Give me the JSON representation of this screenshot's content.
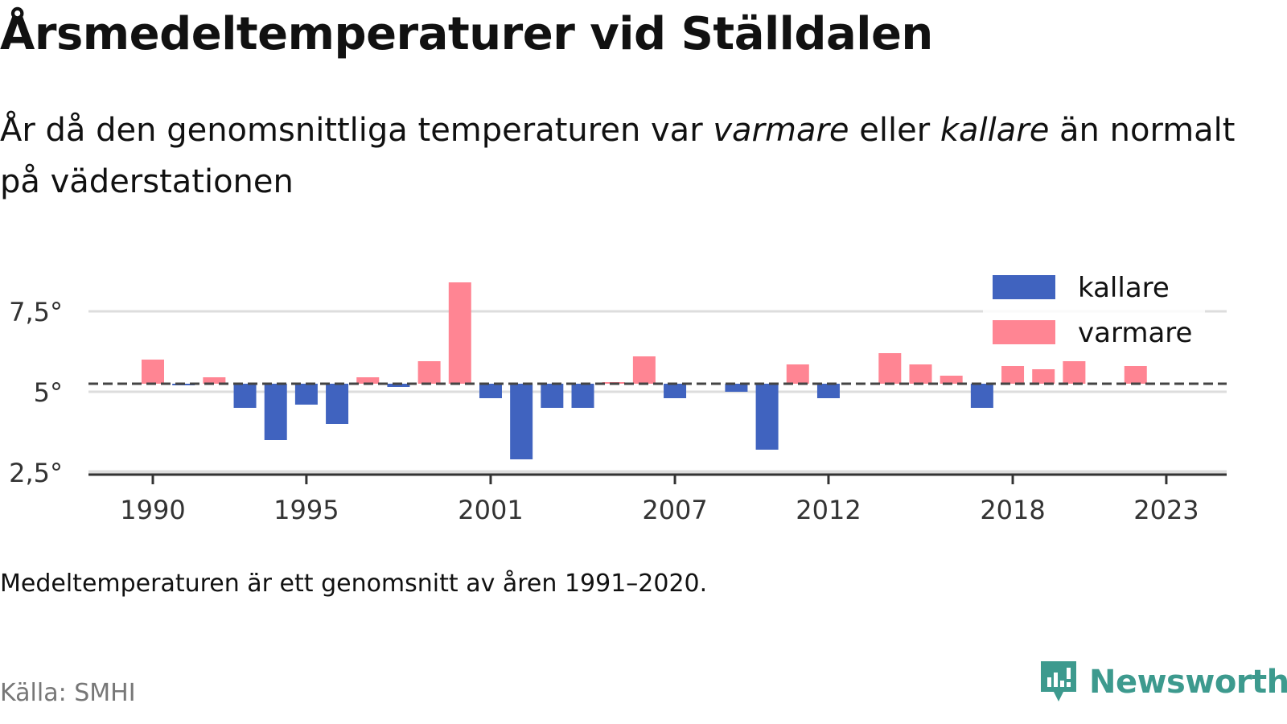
{
  "header": {
    "title": "Årsmedeltemperaturer vid Ställdalen",
    "subtitle_part1": "År då den genomsnittliga temperaturen var ",
    "subtitle_warm": "varmare",
    "subtitle_part2": " eller ",
    "subtitle_cold": "kallare",
    "subtitle_part3": " än normalt på väderstationen"
  },
  "note": "Medeltemperaturen är ett genomsnitt av åren 1991–2020.",
  "source": "Källa: SMHI",
  "brand": {
    "name": "Newsworthy",
    "icon": "newsworthy-logo-icon"
  },
  "colors": {
    "cold": "#4063bf",
    "warm": "#ff8593",
    "baseline": "#444444",
    "grid": "#dddddd",
    "brand": "#3d9a8e"
  },
  "chart_data": {
    "type": "bar",
    "baseline": 5.25,
    "ylim": [
      2.5,
      8.5
    ],
    "yticks": [
      {
        "value": 2.5,
        "label": "2,5°"
      },
      {
        "value": 5,
        "label": "5°"
      },
      {
        "value": 7.5,
        "label": "7,5°"
      }
    ],
    "xticks": [
      1990,
      1995,
      2001,
      2007,
      2012,
      2018,
      2023
    ],
    "legend": {
      "position": "top-right",
      "items": [
        {
          "label": "kallare",
          "color": "#4063bf"
        },
        {
          "label": "varmare",
          "color": "#ff8593"
        }
      ]
    },
    "series": [
      {
        "name": "kallare",
        "data": [
          {
            "x": 1991,
            "y": 5.2
          },
          {
            "x": 1993,
            "y": 4.5
          },
          {
            "x": 1994,
            "y": 3.5
          },
          {
            "x": 1995,
            "y": 4.6
          },
          {
            "x": 1996,
            "y": 4.0
          },
          {
            "x": 1998,
            "y": 5.15
          },
          {
            "x": 2001,
            "y": 4.8
          },
          {
            "x": 2002,
            "y": 2.9
          },
          {
            "x": 2003,
            "y": 4.5
          },
          {
            "x": 2004,
            "y": 4.5
          },
          {
            "x": 2007,
            "y": 4.8
          },
          {
            "x": 2009,
            "y": 5.0
          },
          {
            "x": 2010,
            "y": 3.2
          },
          {
            "x": 2012,
            "y": 4.8
          },
          {
            "x": 2017,
            "y": 4.5
          }
        ]
      },
      {
        "name": "varmare",
        "data": [
          {
            "x": 1990,
            "y": 6.0
          },
          {
            "x": 1992,
            "y": 5.45
          },
          {
            "x": 1997,
            "y": 5.45
          },
          {
            "x": 1999,
            "y": 5.95
          },
          {
            "x": 2000,
            "y": 8.4
          },
          {
            "x": 2005,
            "y": 5.3
          },
          {
            "x": 2006,
            "y": 6.1
          },
          {
            "x": 2011,
            "y": 5.85
          },
          {
            "x": 2014,
            "y": 6.2
          },
          {
            "x": 2015,
            "y": 5.85
          },
          {
            "x": 2016,
            "y": 5.5
          },
          {
            "x": 2018,
            "y": 5.8
          },
          {
            "x": 2019,
            "y": 5.7
          },
          {
            "x": 2020,
            "y": 5.95
          },
          {
            "x": 2022,
            "y": 5.8
          }
        ]
      }
    ]
  }
}
